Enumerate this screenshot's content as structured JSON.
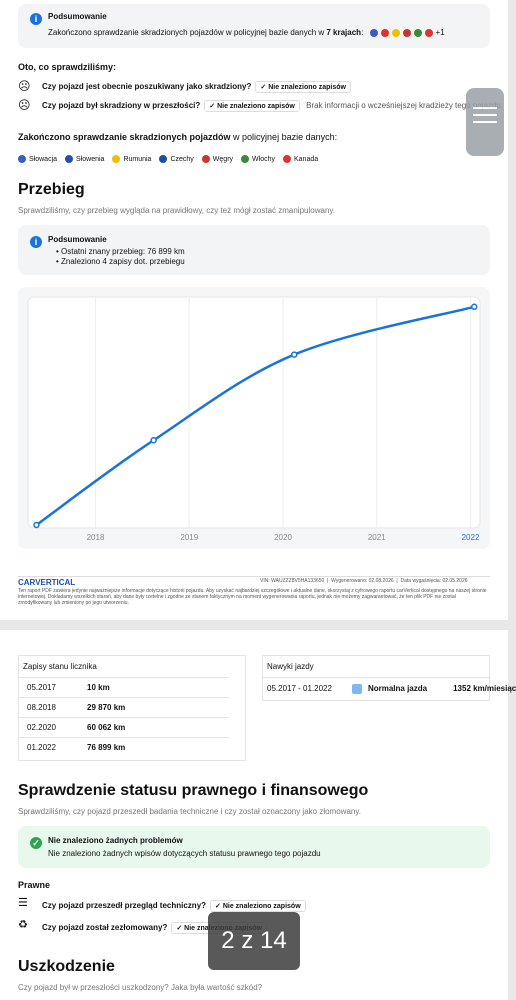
{
  "summary": {
    "title": "Podsumowanie",
    "text": "Zakończono sprawdzanie skradzionych pojazdów w policyjnej bazie danych w ",
    "bold": "7 krajach",
    "colon": ":",
    "more": "+1"
  },
  "checked_heading": "Oto, co sprawdziliśmy:",
  "checks": [
    {
      "question": "Czy pojazd jest obecnie poszukiwany jako skradziony?",
      "badge": "Nie znaleziono zapisów"
    },
    {
      "question": "Czy pojazd był skradziony w przeszłości?",
      "badge": "Nie znaleziono zapisów",
      "note": "Brak informacji o wcześniejszej kradzieży tego pojazdu."
    }
  ],
  "countries_heading": {
    "bold": "Zakończono sprawdzanie skradzionych pojazdów",
    "rest": " w policyjnej bazie danych:"
  },
  "countries": [
    "Słowacja",
    "Słowenia",
    "Rumunia",
    "Czechy",
    "Węgry",
    "Włochy",
    "Kanada"
  ],
  "mileage": {
    "title": "Przebieg",
    "subtitle": "Sprawdziliśmy, czy przebieg wygląda na prawidłowy, czy też mógł zostać zmanipulowany.",
    "summary_title": "Podsumowanie",
    "summary_items": [
      "Ostatni znany przebieg: 76 899 km",
      "Znaleziono 4 zapisy dot. przebiegu"
    ]
  },
  "chart_data": {
    "type": "line",
    "x": [
      2017.37,
      2018.62,
      2020.12,
      2022.04
    ],
    "series": [
      {
        "color": "#1a73d9",
        "values": [
          10,
          29870,
          60062,
          76899
        ]
      }
    ],
    "xlim": [
      2017.28,
      2022.08
    ],
    "xticks": [
      2018,
      2019,
      2020,
      2021,
      2022
    ],
    "ylim": [
      0,
      80000
    ],
    "grid": true
  },
  "footer": {
    "logo": "CARVERTICAL",
    "vin": "VIN: WAUZZZ8V5HA133650",
    "generated": "Wygenerowano: 02.08.2026",
    "expires": "Data wygaśnięcia: 02.05.2026",
    "disclaimer": "Ten raport PDF zawiera jedynie najważniejsze informacje dotyczące historii pojazdu. Aby uzyskać najbardziej szczegółowe i aktualne dane, skorzystaj z cyfrowego raportu carVertical dostępnego na naszej stronie internetowej. Dokładamy wszelkich starań, aby dane były rzetelne i zgodne ze stanem faktycznym na moment wygenerowania raportu, jednak nie możemy zagwarantować, że ten plik PDF nie został zmodyfikowany lub zmieniony po jego utworzeniu."
  },
  "odometer": {
    "title": "Zapisy stanu licznika",
    "rows": [
      [
        "05.2017",
        "10 km"
      ],
      [
        "08.2018",
        "29 870 km"
      ],
      [
        "02.2020",
        "60 062 km"
      ],
      [
        "01.2022",
        "76 899 km"
      ]
    ]
  },
  "habits": {
    "title": "Nawyki jazdy",
    "period": "05.2017 - 01.2022",
    "label": "Normalna jazda",
    "value": "1352 km/miesiąc"
  },
  "legal": {
    "title": "Sprawdzenie statusu prawnego i finansowego",
    "subtitle": "Sprawdziliśmy, czy pojazd przeszedł badania techniczne i czy został oznaczony jako złomowany.",
    "box_title": "Nie znaleziono żadnych problemów",
    "box_text": "Nie znaleziono żadnych wpisów dotyczących statusu prawnego tego pojazdu",
    "section": "Prawne",
    "checks": [
      {
        "question": "Czy pojazd przeszedł przegląd techniczny?",
        "badge": "Nie znaleziono zapisów"
      },
      {
        "question": "Czy pojazd został zezłomowany?",
        "badge": "Nie znaleziono zapisów"
      }
    ]
  },
  "damage": {
    "title": "Uszkodzenie",
    "subtitle": "Czy pojazd był w przeszłości uszkodzony? Jaka była wartość szkód?"
  },
  "page_indicator": "2 z 14"
}
